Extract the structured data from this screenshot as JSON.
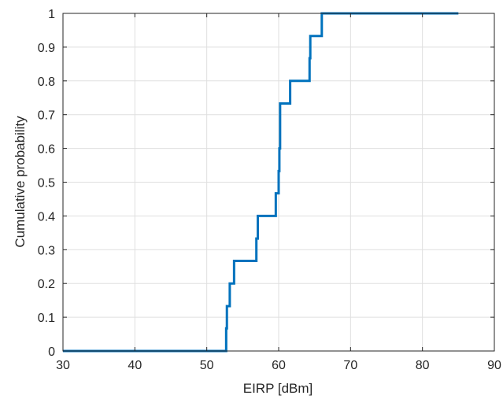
{
  "chart_data": {
    "type": "line",
    "title": "",
    "xlabel": "EIRP [dBm]",
    "ylabel": "Cumulative probability",
    "xlim": [
      30,
      90
    ],
    "ylim": [
      0,
      1
    ],
    "xticks": [
      30,
      40,
      50,
      60,
      70,
      80,
      90
    ],
    "yticks": [
      0,
      0.1,
      0.2,
      0.3,
      0.4,
      0.5,
      0.6,
      0.7,
      0.8,
      0.9,
      1
    ],
    "xtick_labels": [
      "30",
      "40",
      "50",
      "60",
      "70",
      "80",
      "90"
    ],
    "ytick_labels": [
      "0",
      "0.1",
      "0.2",
      "0.3",
      "0.4",
      "0.5",
      "0.6",
      "0.7",
      "0.8",
      "0.9",
      "1"
    ],
    "grid": true,
    "step": true,
    "series": [
      {
        "color": "#0072BD",
        "x": [
          30,
          52.3,
          52.7,
          52.8,
          53.2,
          53.8,
          56.9,
          57.1,
          59.6,
          60.0,
          60.1,
          60.2,
          61.6,
          64.3,
          64.4,
          66.0,
          85
        ],
        "y": [
          0,
          0,
          0.067,
          0.133,
          0.2,
          0.267,
          0.333,
          0.4,
          0.467,
          0.533,
          0.6,
          0.733,
          0.8,
          0.867,
          0.933,
          1.0,
          1.0
        ]
      }
    ]
  }
}
